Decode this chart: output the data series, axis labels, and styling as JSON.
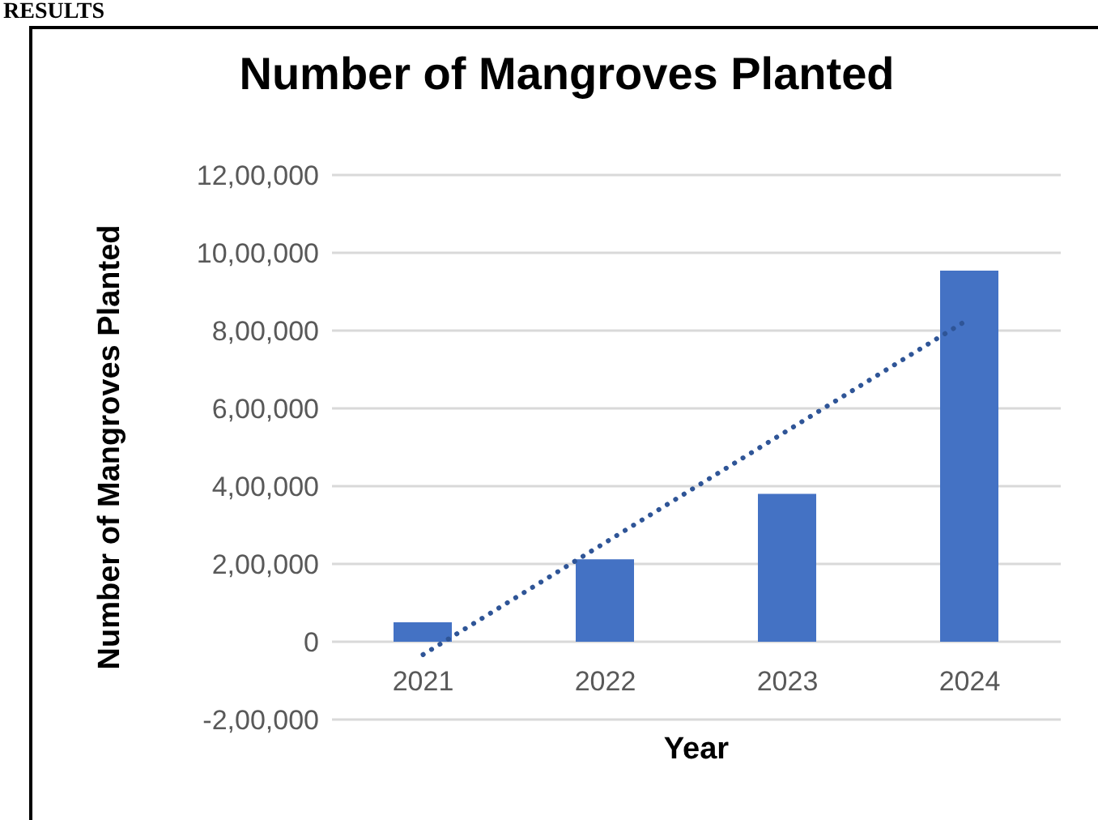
{
  "chart_data": {
    "type": "bar",
    "title": "Number of Mangroves Planted",
    "xlabel": "Year",
    "ylabel": "Number of Mangroves Planted",
    "annotations": [
      "RESULTS"
    ],
    "categories": [
      "2021",
      "2022",
      "2023",
      "2024"
    ],
    "series": [
      {
        "color": "#4472c4",
        "values": [
          50000,
          212000,
          380000,
          954000
        ]
      },
      {
        "type": "line",
        "color": "#2f5597",
        "line_style": "dotted",
        "values": [
          -33000,
          255000,
          543000,
          831000
        ]
      }
    ],
    "ylim": [
      -200000,
      1200000
    ],
    "yticks": [
      {
        "value": -200000,
        "label": "-2,00,000"
      },
      0,
      {
        "value": 200000,
        "label": "2,00,000"
      },
      {
        "value": 400000,
        "label": "4,00,000"
      },
      {
        "value": 600000,
        "label": "6,00,000"
      },
      {
        "value": 800000,
        "label": "8,00,000"
      },
      {
        "value": 1000000,
        "label": "10,00,000"
      },
      {
        "value": 1200000,
        "label": "12,00,000"
      }
    ],
    "grid": "y",
    "legend": false,
    "marker": "none"
  }
}
